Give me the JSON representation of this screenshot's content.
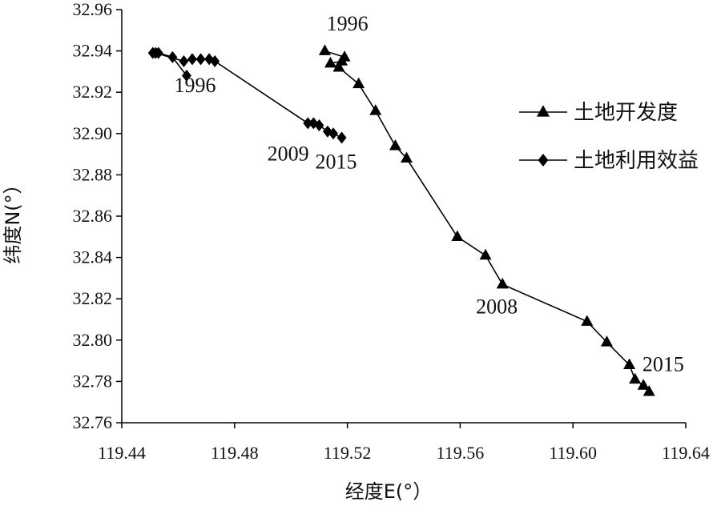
{
  "chart_data": {
    "type": "line",
    "title": "",
    "xlabel": "经度E(°）",
    "ylabel": "纬度N(°）",
    "xlim": [
      119.44,
      119.64
    ],
    "ylim": [
      32.76,
      32.96
    ],
    "x_ticks": [
      "119.44",
      "119.48",
      "119.52",
      "119.56",
      "119.60",
      "119.64"
    ],
    "y_ticks": [
      "32.76",
      "32.78",
      "32.80",
      "32.82",
      "32.84",
      "32.86",
      "32.88",
      "32.90",
      "32.92",
      "32.94",
      "32.96"
    ],
    "grid": false,
    "legend_position": "right",
    "series": [
      {
        "name": "土地开发度",
        "marker": "triangle",
        "color": "#000000",
        "points": [
          [
            119.512,
            32.94
          ],
          [
            119.519,
            32.937
          ],
          [
            119.518,
            32.935
          ],
          [
            119.514,
            32.934
          ],
          [
            119.517,
            32.932
          ],
          [
            119.524,
            32.924
          ],
          [
            119.53,
            32.911
          ],
          [
            119.537,
            32.894
          ],
          [
            119.541,
            32.888
          ],
          [
            119.559,
            32.85
          ],
          [
            119.569,
            32.841
          ],
          [
            119.575,
            32.827
          ],
          [
            119.605,
            32.809
          ],
          [
            119.612,
            32.799
          ],
          [
            119.62,
            32.788
          ],
          [
            119.622,
            32.781
          ],
          [
            119.625,
            32.778
          ],
          [
            119.627,
            32.775
          ]
        ]
      },
      {
        "name": "土地利用效益",
        "marker": "diamond",
        "color": "#000000",
        "points": [
          [
            119.463,
            32.928
          ],
          [
            119.458,
            32.937
          ],
          [
            119.453,
            32.939
          ],
          [
            119.451,
            32.939
          ],
          [
            119.452,
            32.939
          ],
          [
            119.462,
            32.935
          ],
          [
            119.465,
            32.936
          ],
          [
            119.468,
            32.936
          ],
          [
            119.471,
            32.936
          ],
          [
            119.473,
            32.935
          ],
          [
            119.506,
            32.905
          ],
          [
            119.508,
            32.905
          ],
          [
            119.51,
            32.904
          ],
          [
            119.513,
            32.901
          ],
          [
            119.515,
            32.9
          ],
          [
            119.518,
            32.898
          ]
        ]
      }
    ],
    "annotations": [
      {
        "text": "1996",
        "x": 119.52,
        "y": 32.95
      },
      {
        "text": "1996",
        "x": 119.466,
        "y": 32.92
      },
      {
        "text": "2009",
        "x": 119.499,
        "y": 32.887
      },
      {
        "text": "2015",
        "x": 119.516,
        "y": 32.883
      },
      {
        "text": "2008",
        "x": 119.573,
        "y": 32.813
      },
      {
        "text": "2015",
        "x": 119.632,
        "y": 32.785
      }
    ]
  }
}
